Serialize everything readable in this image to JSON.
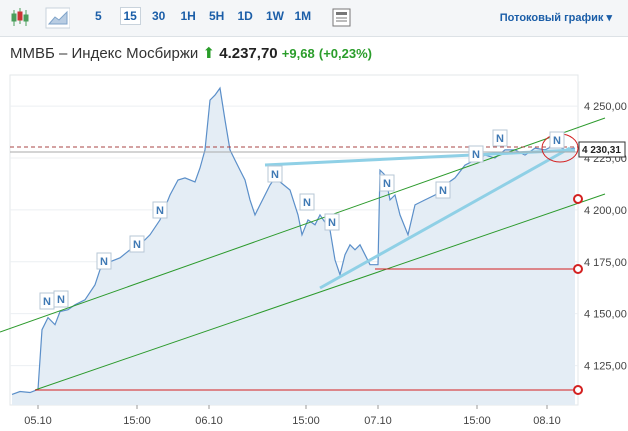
{
  "toolbar": {
    "intervals": [
      "5",
      "15",
      "30",
      "1H",
      "5H",
      "1D",
      "1W",
      "1M"
    ],
    "selected": "15",
    "stream_link": "Потоковый график"
  },
  "chart_data": {
    "type": "area",
    "title": "ММВБ – Индекс Мосбиржи",
    "last": "4.237,70",
    "change": "+9,68",
    "change_pct": "(+0,23%)",
    "last_price_label": "4 230,31",
    "news_marker": "N",
    "color": "#5b8fc9",
    "series": [
      {
        "name": "ММВБ",
        "color": "#5b8fc9",
        "x": [
          2,
          10,
          20,
          28,
          32,
          38,
          45,
          50,
          58,
          65,
          75,
          85,
          90,
          100,
          110,
          120,
          130,
          140,
          150,
          160,
          168,
          175,
          185,
          190,
          195,
          200,
          205,
          210,
          215,
          220,
          225,
          230,
          235,
          240,
          245,
          250,
          255,
          260,
          265,
          270,
          280,
          288,
          292,
          298,
          305,
          310,
          320,
          325,
          330,
          335,
          340,
          345,
          350,
          355,
          360,
          368,
          370,
          375,
          380,
          385,
          390,
          398,
          405,
          415,
          425,
          435,
          445,
          455,
          465,
          475,
          485,
          495,
          505,
          515,
          525,
          535,
          545,
          555,
          565
        ],
        "values": [
          4111.1,
          4112.5,
          4112.0,
          4113.5,
          4142.3,
          4148.1,
          4144.7,
          4151.0,
          4151.9,
          4154.3,
          4156.7,
          4163.9,
          4171.2,
          4175.0,
          4176.9,
          4180.8,
          4183.2,
          4188.0,
          4195.2,
          4207.2,
          4214.4,
          4215.4,
          4213.5,
          4220.2,
          4228.9,
          4252.9,
          4255.3,
          4258.7,
          4243.3,
          4228.9,
          4224.0,
          4219.2,
          4214.4,
          4204.8,
          4197.6,
          4202.4,
          4207.2,
          4212.0,
          4215.4,
          4213.5,
          4209.6,
          4197.6,
          4188.0,
          4195.2,
          4192.8,
          4197.6,
          4190.4,
          4175.9,
          4168.8,
          4178.4,
          4183.2,
          4180.8,
          4183.2,
          4178.4,
          4173.6,
          4173.6,
          4219.2,
          4216.8,
          4204.8,
          4207.2,
          4197.6,
          4188.0,
          4202.4,
          4204.8,
          4207.2,
          4212.0,
          4215.4,
          4221.6,
          4224.0,
          4226.4,
          4225.0,
          4228.9,
          4228.9,
          4226.4,
          4229.8,
          4228.9,
          4231.3,
          4228.9,
          4229.8
        ]
      }
    ],
    "xlim": [
      0,
      568
    ],
    "ylim": [
      4106,
      4265
    ],
    "xticks": [
      {
        "value": 28,
        "label": "05.10"
      },
      {
        "value": 127,
        "label": "15:00"
      },
      {
        "value": 199,
        "label": "06.10"
      },
      {
        "value": 296,
        "label": "15:00"
      },
      {
        "value": 368,
        "label": "07.10"
      },
      {
        "value": 467,
        "label": "15:00"
      },
      {
        "value": 537,
        "label": "08.10"
      }
    ],
    "yticks": [
      {
        "value": 4125,
        "label": "4 125,00"
      },
      {
        "value": 4150,
        "label": "4 150,00"
      },
      {
        "value": 4175,
        "label": "4 175,00"
      },
      {
        "value": 4200,
        "label": "4 200,00"
      },
      {
        "value": 4225,
        "label": "4 225,00"
      },
      {
        "value": 4250,
        "label": "4 250,00"
      }
    ]
  }
}
